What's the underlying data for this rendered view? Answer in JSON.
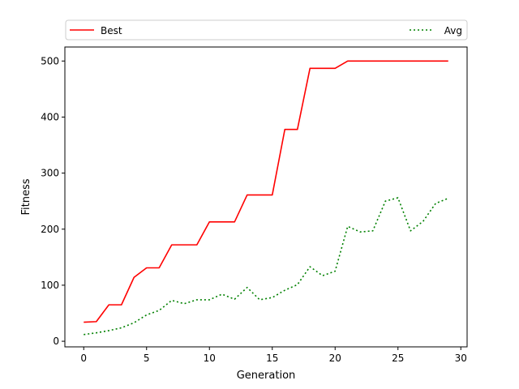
{
  "chart_data": {
    "type": "line",
    "xlabel": "Generation",
    "ylabel": "Fitness",
    "xlim": [
      -1.5,
      30.5
    ],
    "ylim": [
      -10,
      525
    ],
    "xticks": [
      0,
      5,
      10,
      15,
      20,
      25,
      30
    ],
    "yticks": [
      0,
      100,
      200,
      300,
      400,
      500
    ],
    "grid": false,
    "legend_placement": "top",
    "x": [
      0,
      1,
      2,
      3,
      4,
      5,
      6,
      7,
      8,
      9,
      10,
      11,
      12,
      13,
      14,
      15,
      16,
      17,
      18,
      19,
      20,
      21,
      22,
      23,
      24,
      25,
      26,
      27,
      28,
      29
    ],
    "series": [
      {
        "name": "Best",
        "color": "#ff0000",
        "linestyle": "solid",
        "values": [
          34,
          35,
          65,
          65,
          114,
          131,
          131,
          172,
          172,
          172,
          213,
          213,
          213,
          261,
          261,
          261,
          378,
          378,
          487,
          487,
          487,
          500,
          500,
          500,
          500,
          500,
          500,
          500,
          500,
          500
        ]
      },
      {
        "name": "Avg",
        "color": "#008000",
        "linestyle": "dotted",
        "values": [
          12,
          15,
          19,
          24,
          33,
          47,
          55,
          73,
          67,
          74,
          74,
          84,
          75,
          96,
          74,
          78,
          91,
          101,
          133,
          117,
          125,
          205,
          195,
          197,
          250,
          256,
          197,
          214,
          246,
          255
        ]
      }
    ]
  }
}
